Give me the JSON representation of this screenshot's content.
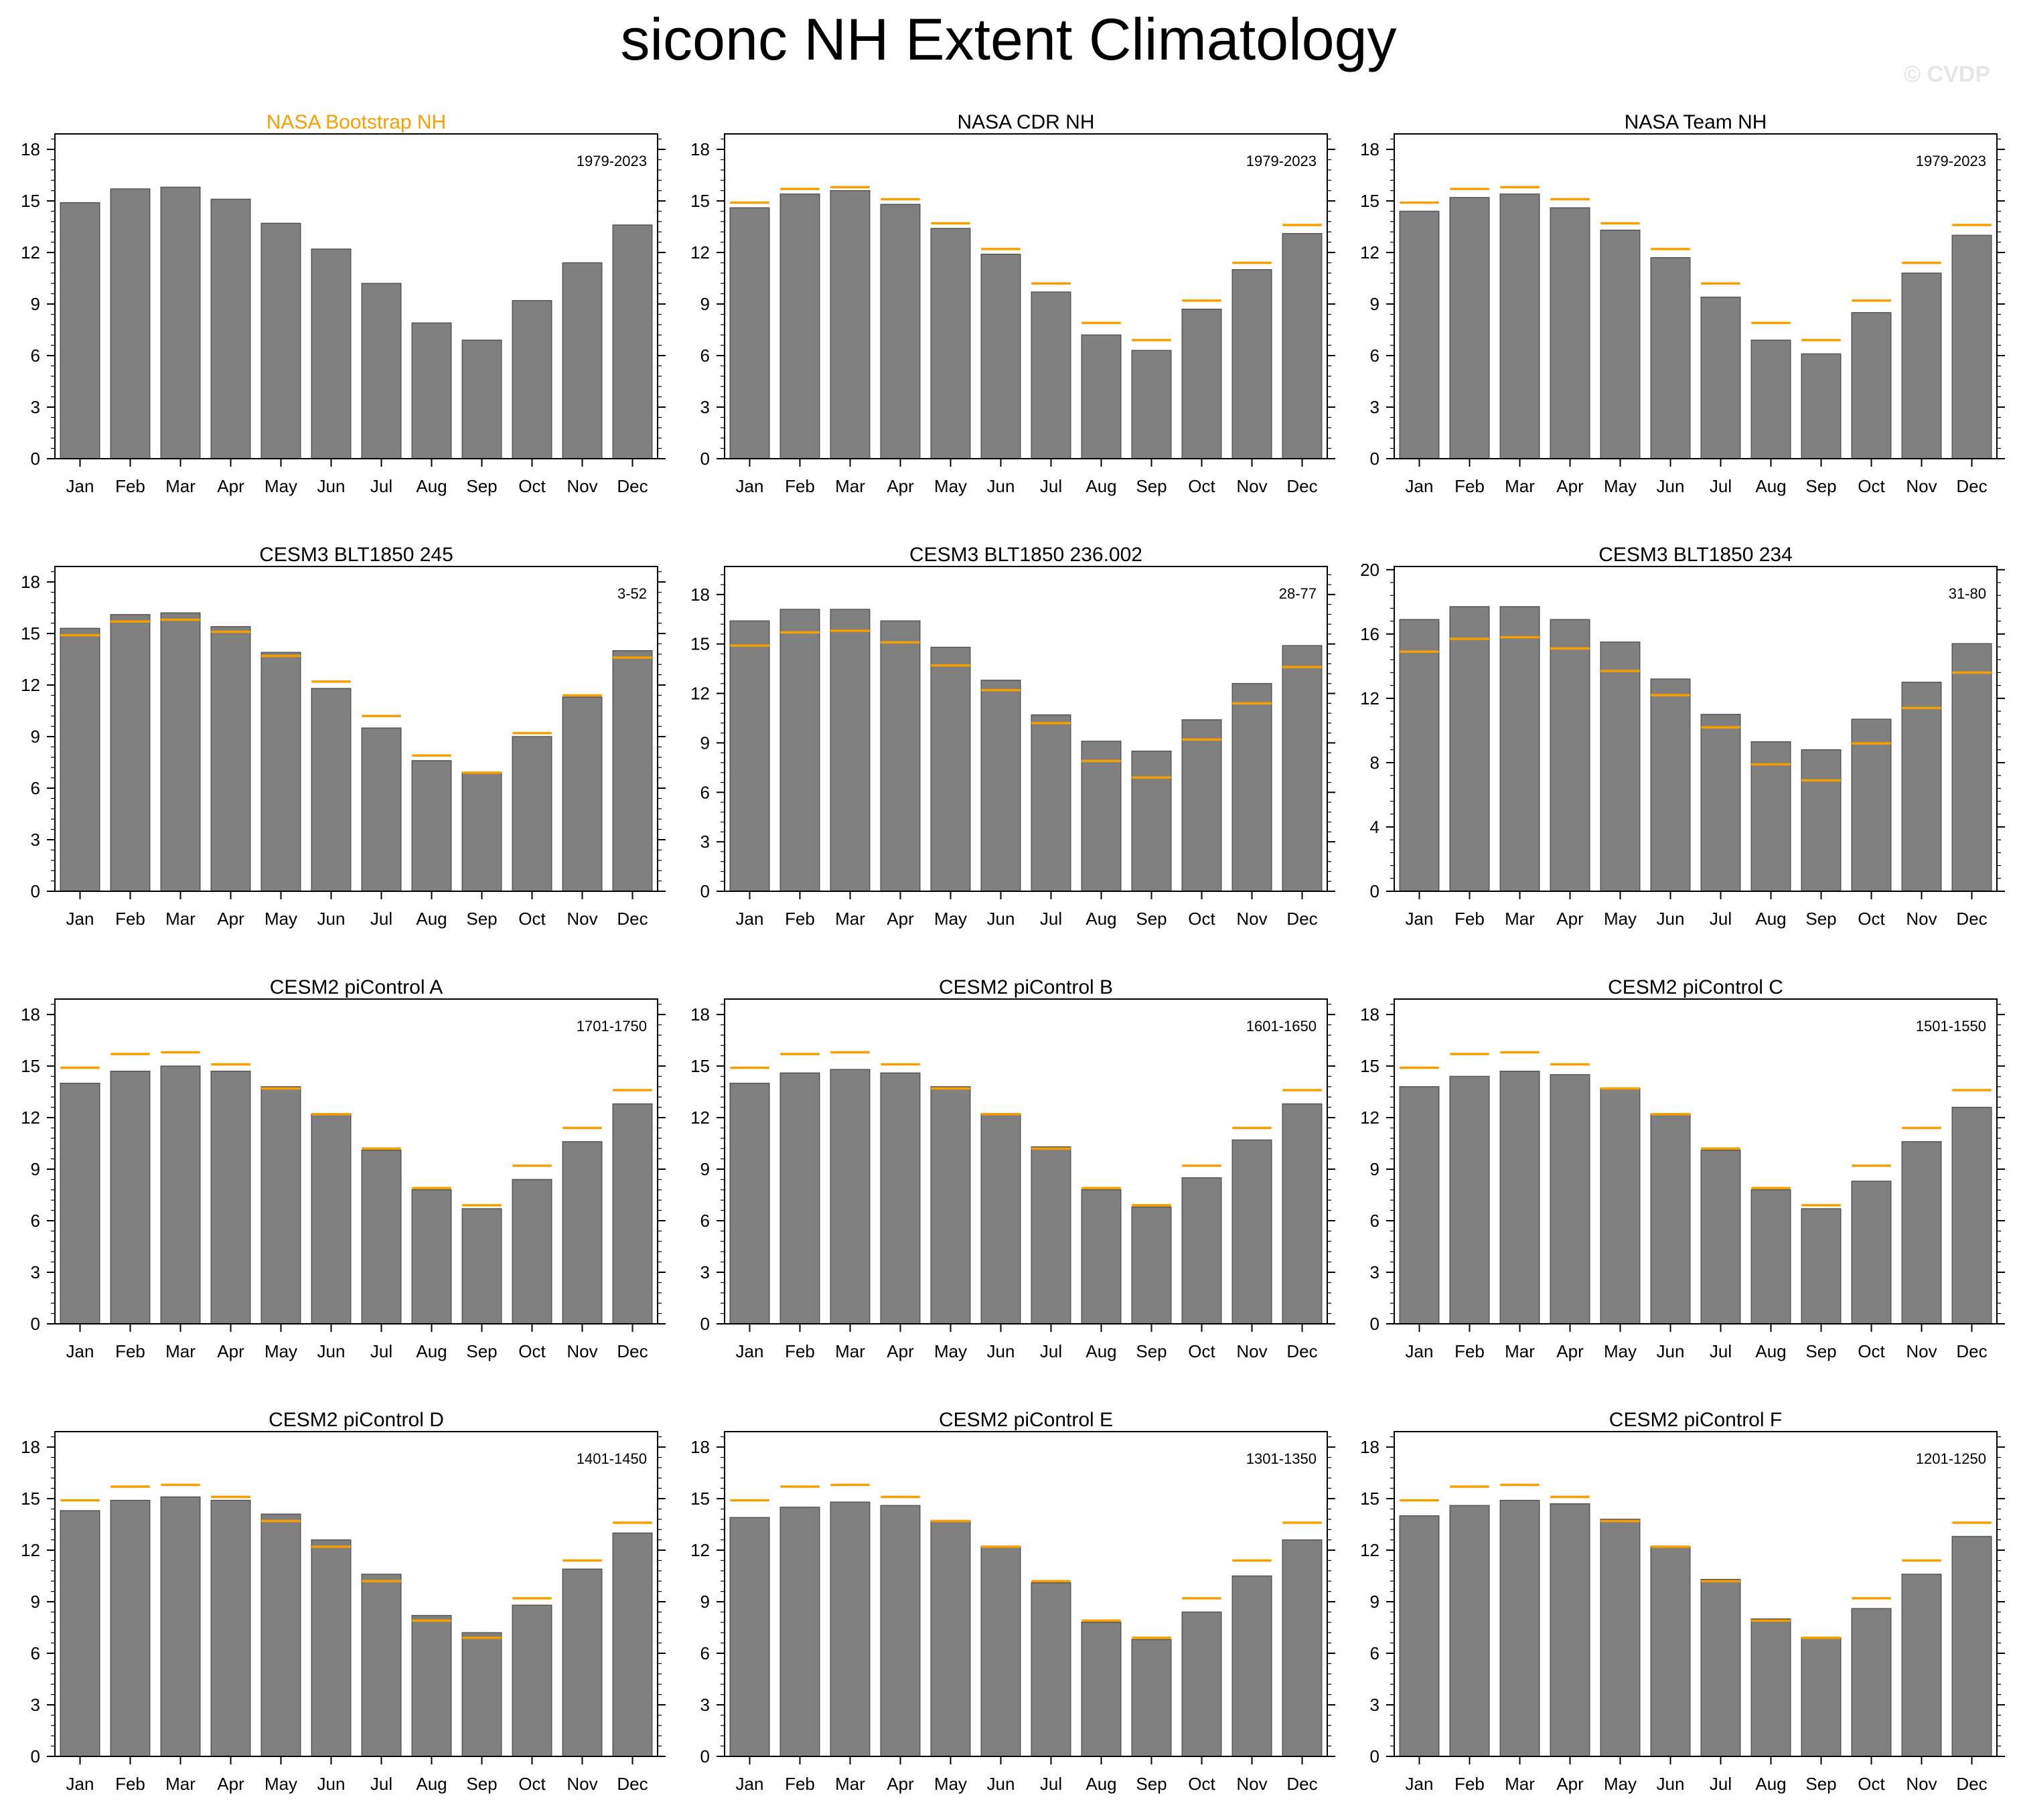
{
  "title": "siconc NH Extent Climatology",
  "watermark": "© CVDP",
  "colors": {
    "bar": "#808080",
    "bar_edge": "#555555",
    "reference_line": "#f5a000",
    "highlight_title": "#f5a000"
  },
  "chart_data": [
    {
      "type": "bar",
      "title": "NASA Bootstrap NH",
      "title_highlight": true,
      "period": "1979-2023",
      "categories": [
        "Jan",
        "Feb",
        "Mar",
        "Apr",
        "May",
        "Jun",
        "Jul",
        "Aug",
        "Sep",
        "Oct",
        "Nov",
        "Dec"
      ],
      "values": [
        14.9,
        15.7,
        15.8,
        15.1,
        13.7,
        12.2,
        10.2,
        7.9,
        6.9,
        9.2,
        11.4,
        13.6
      ],
      "ylim": [
        0,
        18.9
      ],
      "yticks": [
        0,
        3,
        6,
        9,
        12,
        15,
        18
      ],
      "show_reference": false
    },
    {
      "type": "bar",
      "title": "NASA CDR NH",
      "period": "1979-2023",
      "categories": [
        "Jan",
        "Feb",
        "Mar",
        "Apr",
        "May",
        "Jun",
        "Jul",
        "Aug",
        "Sep",
        "Oct",
        "Nov",
        "Dec"
      ],
      "values": [
        14.6,
        15.4,
        15.6,
        14.8,
        13.4,
        11.9,
        9.7,
        7.2,
        6.3,
        8.7,
        11.0,
        13.1
      ],
      "ylim": [
        0,
        18.9
      ],
      "yticks": [
        0,
        3,
        6,
        9,
        12,
        15,
        18
      ],
      "show_reference": true
    },
    {
      "type": "bar",
      "title": "NASA Team NH",
      "period": "1979-2023",
      "categories": [
        "Jan",
        "Feb",
        "Mar",
        "Apr",
        "May",
        "Jun",
        "Jul",
        "Aug",
        "Sep",
        "Oct",
        "Nov",
        "Dec"
      ],
      "values": [
        14.4,
        15.2,
        15.4,
        14.6,
        13.3,
        11.7,
        9.4,
        6.9,
        6.1,
        8.5,
        10.8,
        13.0
      ],
      "ylim": [
        0,
        18.9
      ],
      "yticks": [
        0,
        3,
        6,
        9,
        12,
        15,
        18
      ],
      "show_reference": true
    },
    {
      "type": "bar",
      "title": "CESM3 BLT1850 245",
      "period": "3-52",
      "categories": [
        "Jan",
        "Feb",
        "Mar",
        "Apr",
        "May",
        "Jun",
        "Jul",
        "Aug",
        "Sep",
        "Oct",
        "Nov",
        "Dec"
      ],
      "values": [
        15.3,
        16.1,
        16.2,
        15.4,
        13.9,
        11.8,
        9.5,
        7.6,
        6.9,
        9.0,
        11.3,
        14.0
      ],
      "ylim": [
        0,
        18.9
      ],
      "yticks": [
        0,
        3,
        6,
        9,
        12,
        15,
        18
      ],
      "show_reference": true
    },
    {
      "type": "bar",
      "title": "CESM3 BLT1850 236.002",
      "period": "28-77",
      "categories": [
        "Jan",
        "Feb",
        "Mar",
        "Apr",
        "May",
        "Jun",
        "Jul",
        "Aug",
        "Sep",
        "Oct",
        "Nov",
        "Dec"
      ],
      "values": [
        16.4,
        17.1,
        17.1,
        16.4,
        14.8,
        12.8,
        10.7,
        9.1,
        8.5,
        10.4,
        12.6,
        14.9
      ],
      "ylim": [
        0,
        19.7
      ],
      "yticks": [
        0,
        3,
        6,
        9,
        12,
        15,
        18
      ],
      "show_reference": true
    },
    {
      "type": "bar",
      "title": "CESM3 BLT1850 234",
      "period": "31-80",
      "categories": [
        "Jan",
        "Feb",
        "Mar",
        "Apr",
        "May",
        "Jun",
        "Jul",
        "Aug",
        "Sep",
        "Oct",
        "Nov",
        "Dec"
      ],
      "values": [
        16.9,
        17.7,
        17.7,
        16.9,
        15.5,
        13.2,
        11.0,
        9.3,
        8.8,
        10.7,
        13.0,
        15.4
      ],
      "ylim": [
        0,
        20.2
      ],
      "yticks": [
        0,
        4,
        8,
        12,
        16,
        20
      ],
      "show_reference": true
    },
    {
      "type": "bar",
      "title": "CESM2 piControl A",
      "period": "1701-1750",
      "categories": [
        "Jan",
        "Feb",
        "Mar",
        "Apr",
        "May",
        "Jun",
        "Jul",
        "Aug",
        "Sep",
        "Oct",
        "Nov",
        "Dec"
      ],
      "values": [
        14.0,
        14.7,
        15.0,
        14.7,
        13.8,
        12.2,
        10.1,
        7.8,
        6.7,
        8.4,
        10.6,
        12.8
      ],
      "ylim": [
        0,
        18.9
      ],
      "yticks": [
        0,
        3,
        6,
        9,
        12,
        15,
        18
      ],
      "show_reference": true
    },
    {
      "type": "bar",
      "title": "CESM2 piControl B",
      "period": "1601-1650",
      "categories": [
        "Jan",
        "Feb",
        "Mar",
        "Apr",
        "May",
        "Jun",
        "Jul",
        "Aug",
        "Sep",
        "Oct",
        "Nov",
        "Dec"
      ],
      "values": [
        14.0,
        14.6,
        14.8,
        14.6,
        13.8,
        12.2,
        10.3,
        7.8,
        6.8,
        8.5,
        10.7,
        12.8
      ],
      "ylim": [
        0,
        18.9
      ],
      "yticks": [
        0,
        3,
        6,
        9,
        12,
        15,
        18
      ],
      "show_reference": true
    },
    {
      "type": "bar",
      "title": "CESM2 piControl C",
      "period": "1501-1550",
      "categories": [
        "Jan",
        "Feb",
        "Mar",
        "Apr",
        "May",
        "Jun",
        "Jul",
        "Aug",
        "Sep",
        "Oct",
        "Nov",
        "Dec"
      ],
      "values": [
        13.8,
        14.4,
        14.7,
        14.5,
        13.7,
        12.2,
        10.1,
        7.8,
        6.7,
        8.3,
        10.6,
        12.6
      ],
      "ylim": [
        0,
        18.9
      ],
      "yticks": [
        0,
        3,
        6,
        9,
        12,
        15,
        18
      ],
      "show_reference": true
    },
    {
      "type": "bar",
      "title": "CESM2 piControl D",
      "period": "1401-1450",
      "categories": [
        "Jan",
        "Feb",
        "Mar",
        "Apr",
        "May",
        "Jun",
        "Jul",
        "Aug",
        "Sep",
        "Oct",
        "Nov",
        "Dec"
      ],
      "values": [
        14.3,
        14.9,
        15.1,
        14.9,
        14.1,
        12.6,
        10.6,
        8.2,
        7.2,
        8.8,
        10.9,
        13.0
      ],
      "ylim": [
        0,
        18.9
      ],
      "yticks": [
        0,
        3,
        6,
        9,
        12,
        15,
        18
      ],
      "show_reference": true
    },
    {
      "type": "bar",
      "title": "CESM2 piControl E",
      "period": "1301-1350",
      "categories": [
        "Jan",
        "Feb",
        "Mar",
        "Apr",
        "May",
        "Jun",
        "Jul",
        "Aug",
        "Sep",
        "Oct",
        "Nov",
        "Dec"
      ],
      "values": [
        13.9,
        14.5,
        14.8,
        14.6,
        13.7,
        12.2,
        10.1,
        7.8,
        6.8,
        8.4,
        10.5,
        12.6
      ],
      "ylim": [
        0,
        18.9
      ],
      "yticks": [
        0,
        3,
        6,
        9,
        12,
        15,
        18
      ],
      "show_reference": true
    },
    {
      "type": "bar",
      "title": "CESM2 piControl F",
      "period": "1201-1250",
      "categories": [
        "Jan",
        "Feb",
        "Mar",
        "Apr",
        "May",
        "Jun",
        "Jul",
        "Aug",
        "Sep",
        "Oct",
        "Nov",
        "Dec"
      ],
      "values": [
        14.0,
        14.6,
        14.9,
        14.7,
        13.8,
        12.2,
        10.3,
        8.0,
        6.9,
        8.6,
        10.6,
        12.8
      ],
      "ylim": [
        0,
        18.9
      ],
      "yticks": [
        0,
        3,
        6,
        9,
        12,
        15,
        18
      ],
      "show_reference": true
    }
  ],
  "reference_values": [
    14.9,
    15.7,
    15.8,
    15.1,
    13.7,
    12.2,
    10.2,
    7.9,
    6.9,
    9.2,
    11.4,
    13.6
  ]
}
